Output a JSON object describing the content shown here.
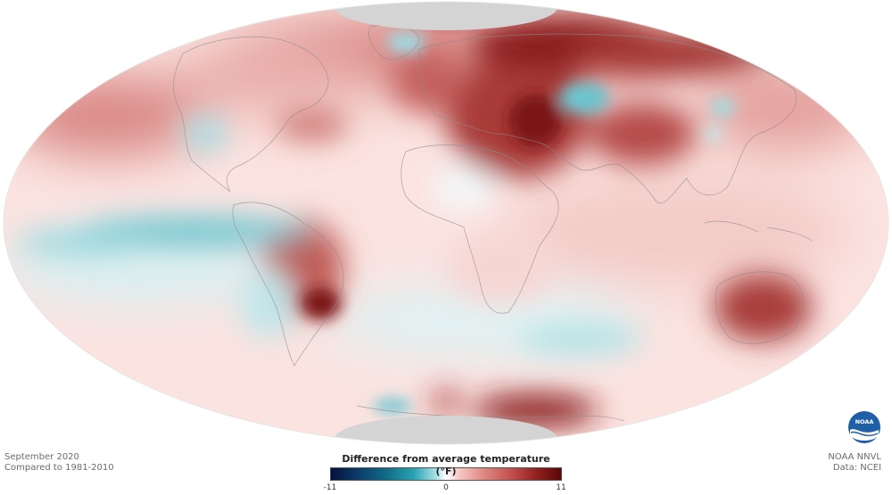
{
  "map": {
    "projection": "Mollweide (whole globe)",
    "polar_masks": [
      "north-pole-no-data",
      "south-pole-no-data"
    ],
    "mask_color": "#d4d4d4"
  },
  "meta": {
    "month": "September 2020",
    "baseline": "Compared to 1981-2010",
    "producer": "NOAA NNVL",
    "data_source": "Data: NCEI"
  },
  "legend": {
    "title": "Difference from average temperature (°F)",
    "min_label": "-11",
    "mid_label": "0",
    "max_label": "11",
    "range": [
      -11,
      11
    ],
    "colors": {
      "cold_extreme": "#06103f",
      "cold": "#2aa3b2",
      "neutral": "#ffffff",
      "warm": "#e08a86",
      "warm_extreme": "#5a0707"
    }
  },
  "logo": {
    "name": "noaa-logo",
    "text": "NOAA",
    "color": "#1f5fa8"
  }
}
